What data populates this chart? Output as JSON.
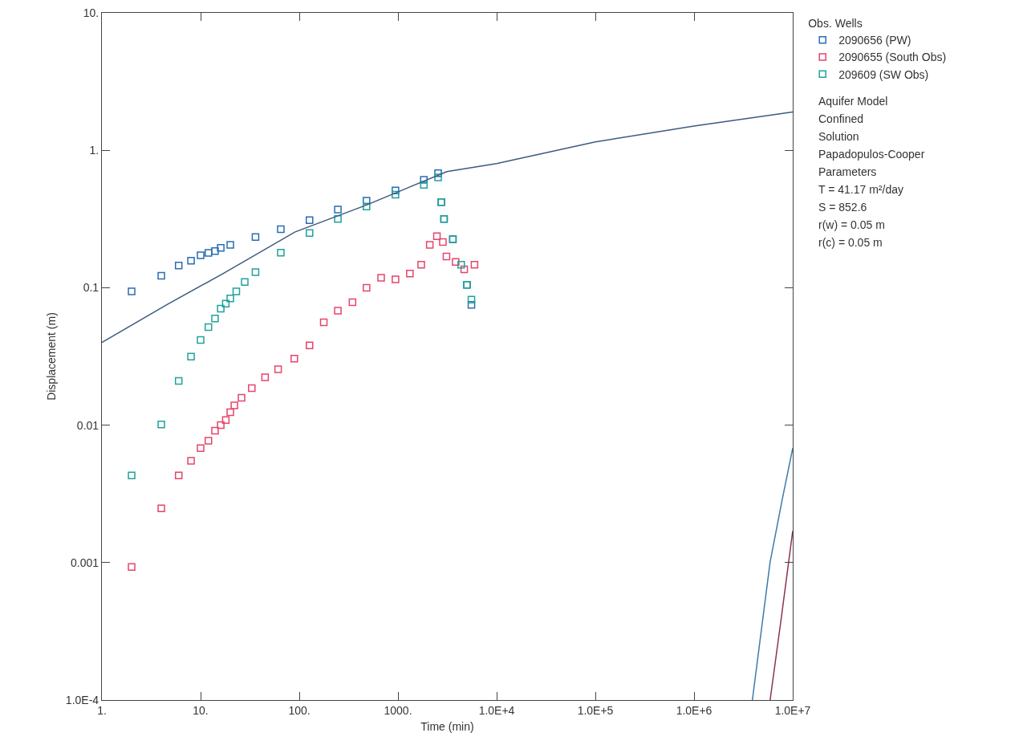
{
  "chart_data": {
    "type": "scatter",
    "xlabel": "Time (min)",
    "ylabel": "Displacement (m)",
    "legend_title": "Obs. Wells",
    "log": "xy",
    "grid": false,
    "legend": "top right",
    "marker": "square",
    "xlim": [
      1,
      10000000
    ],
    "ylim": [
      0.0001,
      10
    ],
    "xticks": [
      {
        "value": 1,
        "label": "1."
      },
      {
        "value": 10,
        "label": "10."
      },
      {
        "value": 100,
        "label": "100."
      },
      {
        "value": 1000,
        "label": "1000."
      },
      {
        "value": 10000,
        "label": "1.0E+4"
      },
      {
        "value": 100000,
        "label": "1.0E+5"
      },
      {
        "value": 1000000,
        "label": "1.0E+6"
      },
      {
        "value": 10000000,
        "label": "1.0E+7"
      }
    ],
    "yticks": [
      {
        "value": 0.0001,
        "label": "1.0E-4"
      },
      0.001,
      0.01,
      0.1,
      {
        "value": 1,
        "label": "1."
      },
      {
        "value": 10,
        "label": "10."
      }
    ],
    "series": [
      {
        "name": "2090656 (PW)",
        "color": "#2a6cb3",
        "x": [
          2,
          4,
          6,
          8,
          10,
          12,
          14,
          16,
          20,
          36,
          65,
          127,
          246,
          480,
          943,
          1830,
          2550,
          2750,
          2930,
          3600,
          4370,
          5000,
          5550
        ],
        "values": [
          0.094,
          0.122,
          0.145,
          0.157,
          0.172,
          0.179,
          0.185,
          0.195,
          0.205,
          0.234,
          0.267,
          0.31,
          0.37,
          0.43,
          0.51,
          0.61,
          0.68,
          0.42,
          0.316,
          0.225,
          null,
          0.105,
          0.075
        ]
      },
      {
        "name": "2090655 (South Obs)",
        "color": "#e5456a",
        "x": [
          2,
          4,
          6,
          8,
          10,
          12,
          14,
          16,
          18,
          20,
          22,
          26,
          33,
          45,
          61,
          89,
          127,
          177,
          246,
          346,
          480,
          675,
          943,
          1320,
          1720,
          2100,
          2480,
          2850,
          3100,
          3840,
          4690,
          5960
        ],
        "values": [
          0.00093,
          0.00248,
          0.0043,
          0.0055,
          0.0068,
          0.0077,
          0.0091,
          0.01,
          0.0109,
          0.0124,
          0.0139,
          0.0158,
          0.0186,
          0.0223,
          0.0255,
          0.0305,
          0.038,
          0.056,
          0.068,
          0.0785,
          0.0998,
          0.118,
          0.115,
          0.127,
          0.147,
          0.205,
          0.237,
          0.215,
          0.169,
          0.154,
          0.136,
          0.147
        ]
      },
      {
        "name": "209609 (SW Obs)",
        "color": "#1fa39a",
        "x": [
          2,
          4,
          6,
          8,
          10,
          12,
          14,
          16,
          18,
          20,
          23,
          28,
          36,
          65,
          127,
          246,
          480,
          943,
          1830,
          2550,
          2750,
          2930,
          3600,
          4370,
          5000,
          5550
        ],
        "values": [
          0.0043,
          0.0101,
          0.021,
          0.0315,
          0.0416,
          0.0516,
          0.0597,
          0.0703,
          0.0766,
          0.0835,
          0.094,
          0.11,
          0.13,
          0.18,
          0.25,
          0.316,
          0.39,
          0.475,
          0.56,
          0.635,
          0.42,
          0.316,
          0.225,
          0.147,
          0.105,
          0.082
        ]
      },
      {
        "type": "line",
        "marker": "none",
        "color": "#3d5a80",
        "x": [
          1,
          4.5,
          17,
          90,
          480,
          3130,
          10000,
          100000,
          1000000,
          10000000
        ],
        "values": [
          0.04,
          0.075,
          0.127,
          0.254,
          0.4,
          0.7,
          0.8,
          1.15,
          1.5,
          1.9
        ]
      },
      {
        "type": "line",
        "marker": "none",
        "color": "#3f7aa8",
        "x": [
          3900000,
          5900000,
          7800000,
          10000000
        ],
        "values": [
          0.0001,
          0.00101,
          0.00284,
          0.0068
        ]
      },
      {
        "type": "line",
        "marker": "none",
        "color": "#8b3347",
        "x": [
          5900000,
          7600000,
          10000000
        ],
        "values": [
          0.0001,
          0.00038,
          0.0017
        ]
      }
    ],
    "annotations": [
      "Aquifer Model",
      "Confined",
      "Solution",
      "Papadopulos-Cooper",
      "Parameters",
      "T = 41.17 m²/day",
      "S = 852.6",
      "r(w) = 0.05 m",
      "r(c) = 0.05 m"
    ]
  }
}
